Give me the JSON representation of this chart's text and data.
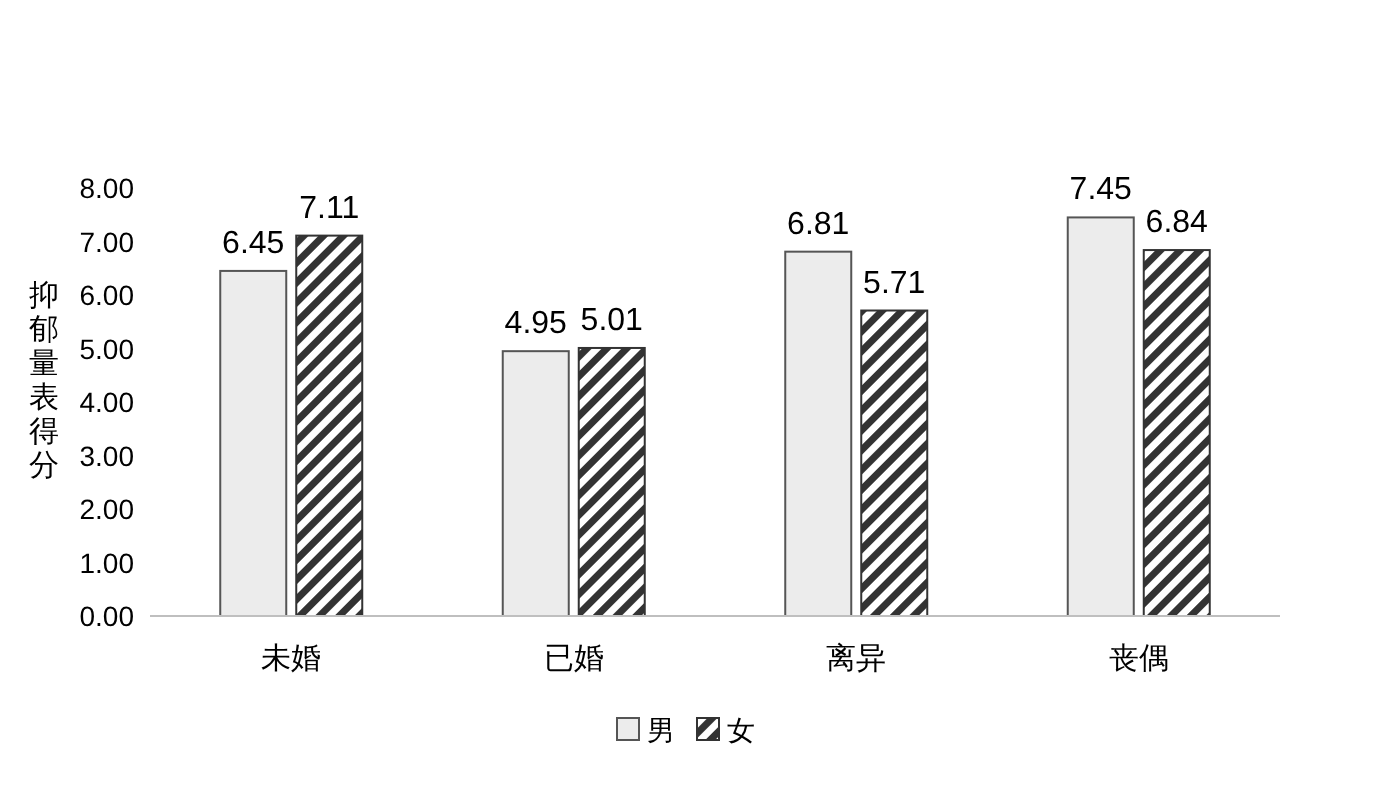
{
  "chart_data": {
    "type": "bar",
    "ylabel": "抑郁量表得分",
    "categories": [
      "未婚",
      "已婚",
      "离异",
      "丧偶"
    ],
    "series": [
      {
        "name": "男",
        "color": "#ececec",
        "values": [
          6.45,
          4.95,
          6.81,
          7.45
        ]
      },
      {
        "name": "女",
        "color": "#333333",
        "values": [
          7.11,
          5.01,
          5.71,
          6.84
        ]
      }
    ],
    "ylim": [
      0,
      8
    ],
    "yticks": [
      {
        "value": 0,
        "label": "0.00"
      },
      {
        "value": 1,
        "label": "1.00"
      },
      {
        "value": 2,
        "label": "2.00"
      },
      {
        "value": 3,
        "label": "3.00"
      },
      {
        "value": 4,
        "label": "4.00"
      },
      {
        "value": 5,
        "label": "5.00"
      },
      {
        "value": 6,
        "label": "6.00"
      },
      {
        "value": 7,
        "label": "7.00"
      },
      {
        "value": 8,
        "label": "8.00"
      }
    ],
    "data_labels": true,
    "legend": "bottom",
    "grid": false
  }
}
